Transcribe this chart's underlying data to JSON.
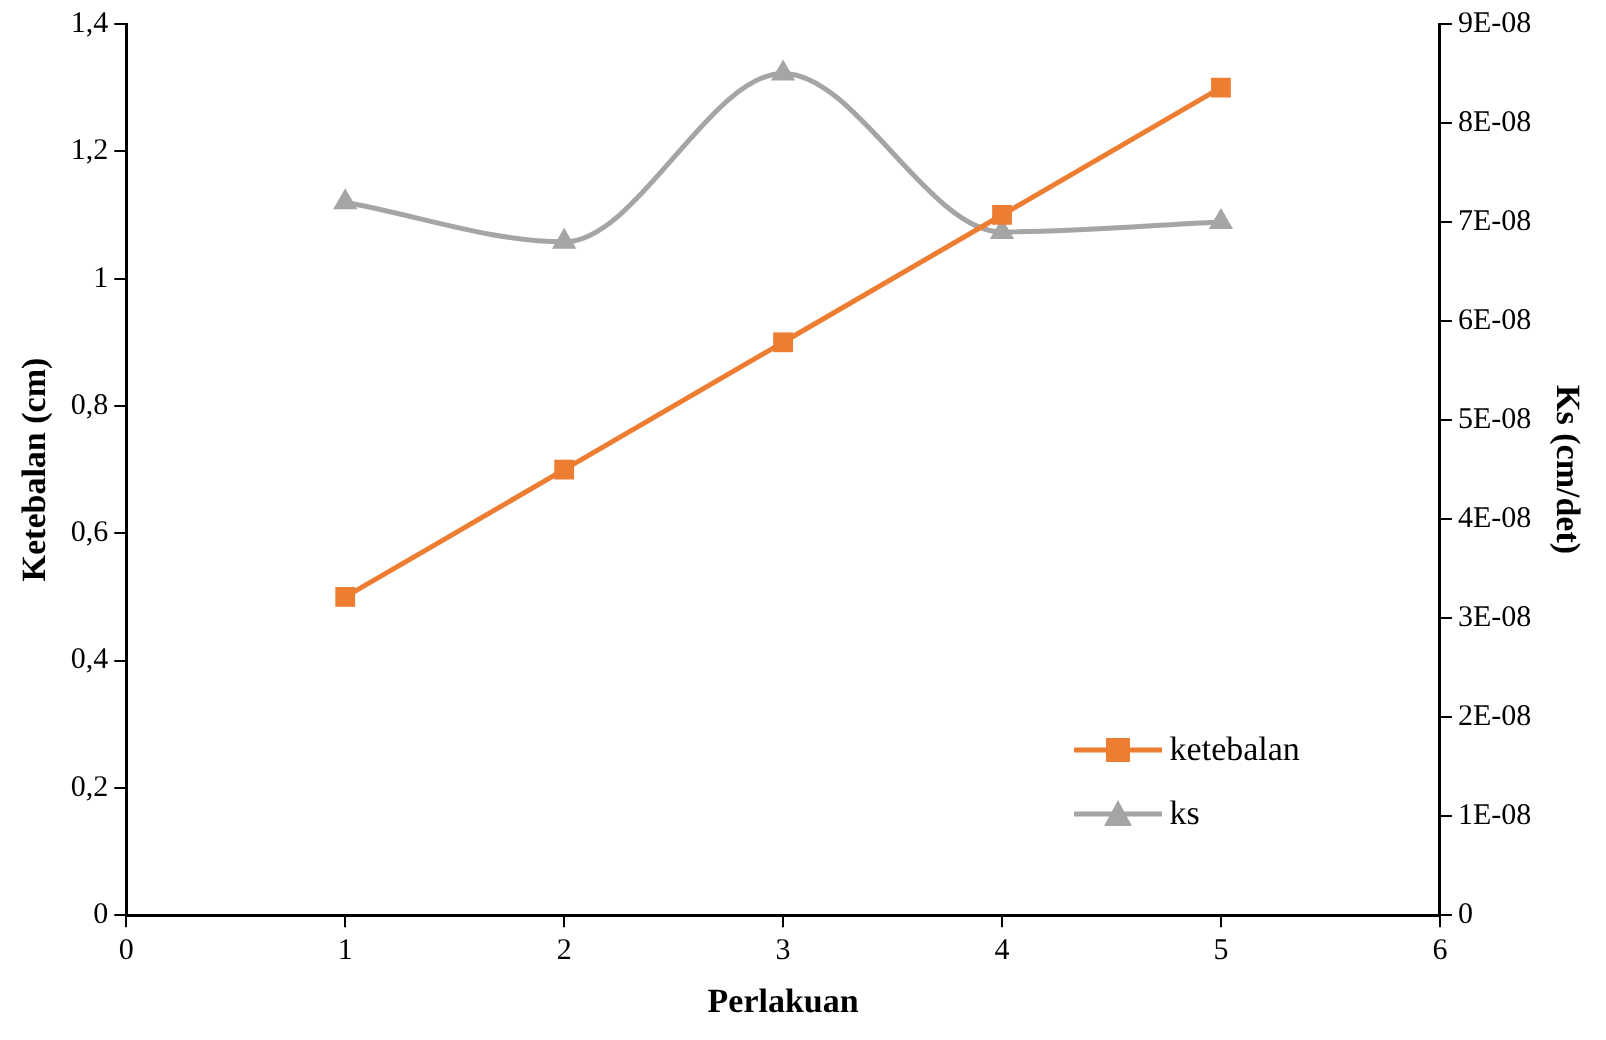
{
  "chart_data": {
    "type": "line",
    "xlabel": "Perlakuan",
    "ylabel": "Ketebalan (cm)",
    "y2label": "Ks (cm/det)",
    "x": [
      1,
      2,
      3,
      4,
      5
    ],
    "series": [
      {
        "name": "ketebalan",
        "color": "#ed7d31",
        "values": [
          0.5,
          0.7,
          0.9,
          1.1,
          1.3
        ],
        "marker": "square"
      },
      {
        "name": "ks",
        "color": "#a5a5a5",
        "values": [
          7.2e-08,
          6.8e-08,
          8.5e-08,
          6.9e-08,
          7e-08
        ],
        "axis": "y2",
        "marker": "triangle"
      }
    ],
    "xlim": [
      0,
      6
    ],
    "xticks": [
      0,
      1,
      2,
      3,
      4,
      5,
      6
    ],
    "ylim": [
      0,
      1.4
    ],
    "yticks": [
      0,
      {
        "value": 0.2,
        "label": "0,2"
      },
      {
        "value": 0.4,
        "label": "0,4"
      },
      {
        "value": 0.6,
        "label": "0,6"
      },
      {
        "value": 0.8,
        "label": "0,8"
      },
      1,
      {
        "value": 1.2,
        "label": "1,2"
      },
      {
        "value": 1.4,
        "label": "1,4"
      }
    ],
    "y2lim": [
      0,
      9e-08
    ],
    "y2ticks": [
      0,
      {
        "value": 1e-08,
        "label": "1E-08"
      },
      {
        "value": 2e-08,
        "label": "2E-08"
      },
      {
        "value": 3e-08,
        "label": "3E-08"
      },
      {
        "value": 4e-08,
        "label": "4E-08"
      },
      {
        "value": 5e-08,
        "label": "5E-08"
      },
      {
        "value": 6e-08,
        "label": "6E-08"
      },
      {
        "value": 7e-08,
        "label": "7E-08"
      },
      {
        "value": 8e-08,
        "label": "8E-08"
      },
      {
        "value": 9e-08,
        "label": "9E-08"
      }
    ],
    "grid": false,
    "legend": "bottom right"
  }
}
